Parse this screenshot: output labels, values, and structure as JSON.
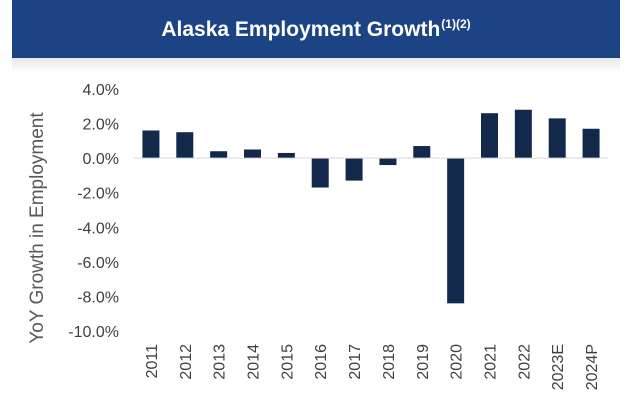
{
  "header": {
    "title": "Alaska Employment Growth",
    "footnotes": "(1)(2)"
  },
  "chart_data": {
    "type": "bar",
    "title": "Alaska Employment Growth",
    "xlabel": "",
    "ylabel": "YoY Growth in Employment",
    "categories": [
      "2011",
      "2012",
      "2013",
      "2014",
      "2015",
      "2016",
      "2017",
      "2018",
      "2019",
      "2020",
      "2021",
      "2022",
      "2023E",
      "2024P"
    ],
    "values": [
      1.6,
      1.5,
      0.4,
      0.5,
      0.3,
      -1.7,
      -1.3,
      -0.4,
      0.7,
      -8.4,
      2.6,
      2.8,
      2.3,
      1.7
    ],
    "ylim": [
      -10.0,
      4.0
    ],
    "yticks": [
      4.0,
      2.0,
      0.0,
      -2.0,
      -4.0,
      -6.0,
      -8.0,
      -10.0
    ],
    "ytick_labels": [
      "4.0%",
      "2.0%",
      "0.0%",
      "-2.0%",
      "-4.0%",
      "-6.0%",
      "-8.0%",
      "-10.0%"
    ],
    "bar_color": "#13294b",
    "grid": false,
    "legend": "none"
  }
}
